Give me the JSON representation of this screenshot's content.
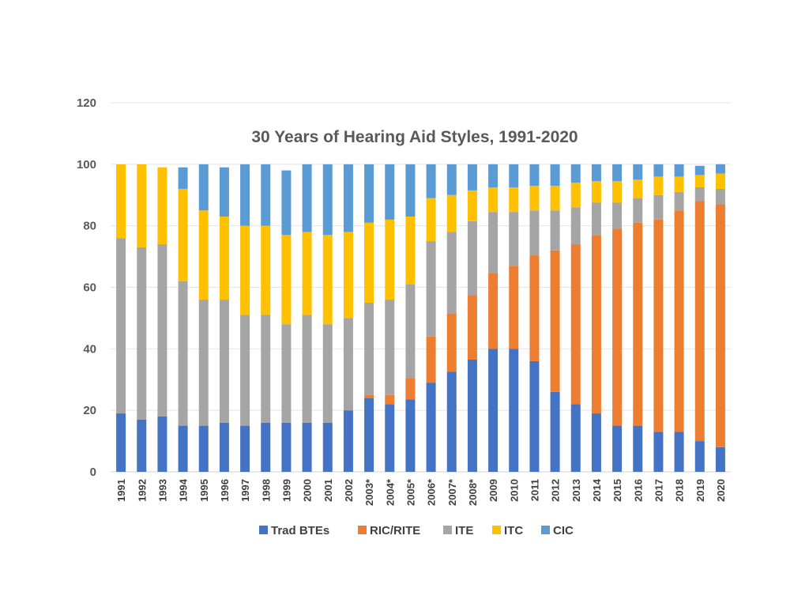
{
  "chart_data": {
    "type": "bar",
    "stacked": true,
    "title": "30 Years of Hearing Aid Styles, 1991-2020",
    "xlabel": "",
    "ylabel": "",
    "ylim": [
      0,
      120
    ],
    "yticks": [
      0,
      20,
      40,
      60,
      80,
      100,
      120
    ],
    "grid": true,
    "legend_position": "bottom",
    "categories": [
      "1991",
      "1992",
      "1993",
      "1994",
      "1995",
      "1996",
      "1997",
      "1998",
      "1999",
      "2000",
      "2001",
      "2002",
      "2003*",
      "2004*",
      "2005*",
      "2006*",
      "2007*",
      "2008*",
      "2009",
      "2010",
      "2011",
      "2012",
      "2013",
      "2014",
      "2015",
      "2016",
      "2017",
      "2018",
      "2019",
      "2020"
    ],
    "series": [
      {
        "name": "Trad BTEs",
        "color": "#4472c4",
        "values": [
          19,
          17,
          18,
          15,
          15,
          16,
          15,
          16,
          16,
          16,
          16,
          20,
          24,
          22,
          23.5,
          29,
          32.5,
          36.5,
          40,
          40,
          36,
          26,
          22,
          19,
          15,
          15,
          13,
          13,
          10,
          8
        ]
      },
      {
        "name": "RIC/RITE",
        "color": "#ed7d31",
        "values": [
          0,
          0,
          0,
          0,
          0,
          0,
          0,
          0,
          0,
          0,
          0,
          0,
          1,
          3,
          7,
          15,
          19,
          21,
          24.5,
          27,
          34.5,
          46,
          52,
          58,
          64,
          66,
          69,
          72,
          78,
          79
        ]
      },
      {
        "name": "ITE",
        "color": "#a5a5a5",
        "values": [
          57,
          56,
          56,
          47,
          41,
          40,
          36,
          35,
          32,
          35,
          32,
          30,
          30,
          31,
          30.5,
          31,
          26.5,
          24,
          20,
          17.5,
          14.5,
          13,
          12,
          10.5,
          8.5,
          8,
          8,
          6,
          4.5,
          5
        ]
      },
      {
        "name": "ITC",
        "color": "#ffc000",
        "values": [
          24,
          27,
          25,
          30,
          29,
          27,
          29,
          29,
          29,
          27,
          29,
          28,
          26,
          26,
          22,
          14,
          12,
          10,
          8,
          8,
          8,
          8,
          8,
          7,
          7,
          6,
          6,
          5,
          4,
          5
        ]
      },
      {
        "name": "CIC",
        "color": "#5b9bd5",
        "values": [
          0,
          0,
          0,
          7,
          15,
          16,
          20,
          20,
          21,
          22,
          23,
          22,
          19,
          18,
          17,
          11,
          10,
          8.5,
          7.5,
          7.5,
          7,
          7,
          6,
          5.5,
          5.5,
          5,
          4,
          4,
          3,
          3
        ]
      }
    ]
  }
}
